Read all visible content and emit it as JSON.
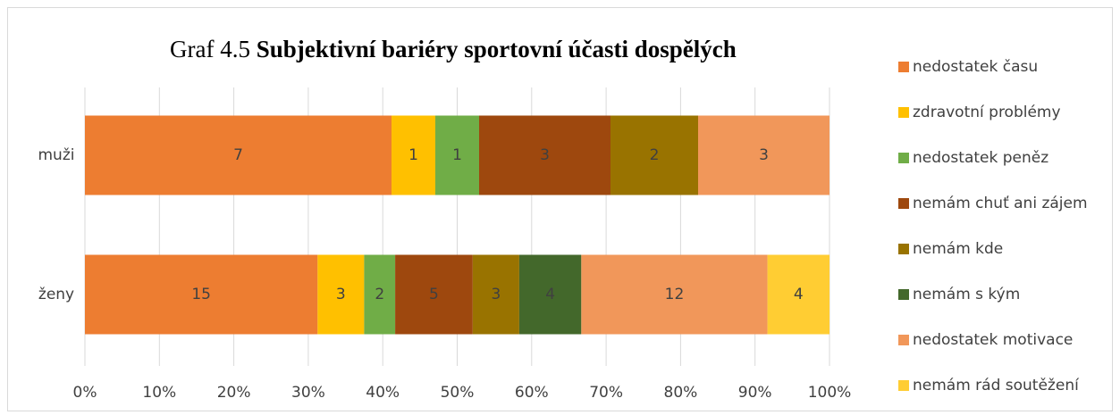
{
  "chart_data": {
    "type": "bar",
    "orientation": "horizontal",
    "stacked": "percent",
    "title_label": "Graf 4.5",
    "title": "Subjektivní bariéry sportovní účasti dospělých",
    "categories": [
      "muži",
      "ženy"
    ],
    "series": [
      {
        "name": "nedostatek času",
        "color": "#ed7d31",
        "values": [
          7,
          15
        ]
      },
      {
        "name": "zdravotní problémy",
        "color": "#ffc000",
        "values": [
          1,
          3
        ]
      },
      {
        "name": "nedostatek peněz",
        "color": "#70ad47",
        "values": [
          1,
          2
        ]
      },
      {
        "name": "nemám chuť ani zájem",
        "color": "#9e480e",
        "values": [
          3,
          5
        ]
      },
      {
        "name": "nemám kde",
        "color": "#997300",
        "values": [
          2,
          3
        ]
      },
      {
        "name": "nemám s kým",
        "color": "#43682b",
        "values": [
          null,
          4
        ]
      },
      {
        "name": "nedostatek motivace",
        "color": "#f1975a",
        "values": [
          3,
          12
        ]
      },
      {
        "name": "nemám rád soutěžení",
        "color": "#ffcd33",
        "values": [
          null,
          4
        ]
      }
    ],
    "xlim": [
      0,
      100
    ],
    "xticks": [
      {
        "value": 0,
        "label": "0%"
      },
      {
        "value": 10,
        "label": "10%"
      },
      {
        "value": 20,
        "label": "20%"
      },
      {
        "value": 30,
        "label": "30%"
      },
      {
        "value": 40,
        "label": "40%"
      },
      {
        "value": 50,
        "label": "50%"
      },
      {
        "value": 60,
        "label": "60%"
      },
      {
        "value": 70,
        "label": "70%"
      },
      {
        "value": 80,
        "label": "80%"
      },
      {
        "value": 90,
        "label": "90%"
      },
      {
        "value": 100,
        "label": "100%"
      }
    ],
    "grid": true,
    "legend": "right"
  }
}
